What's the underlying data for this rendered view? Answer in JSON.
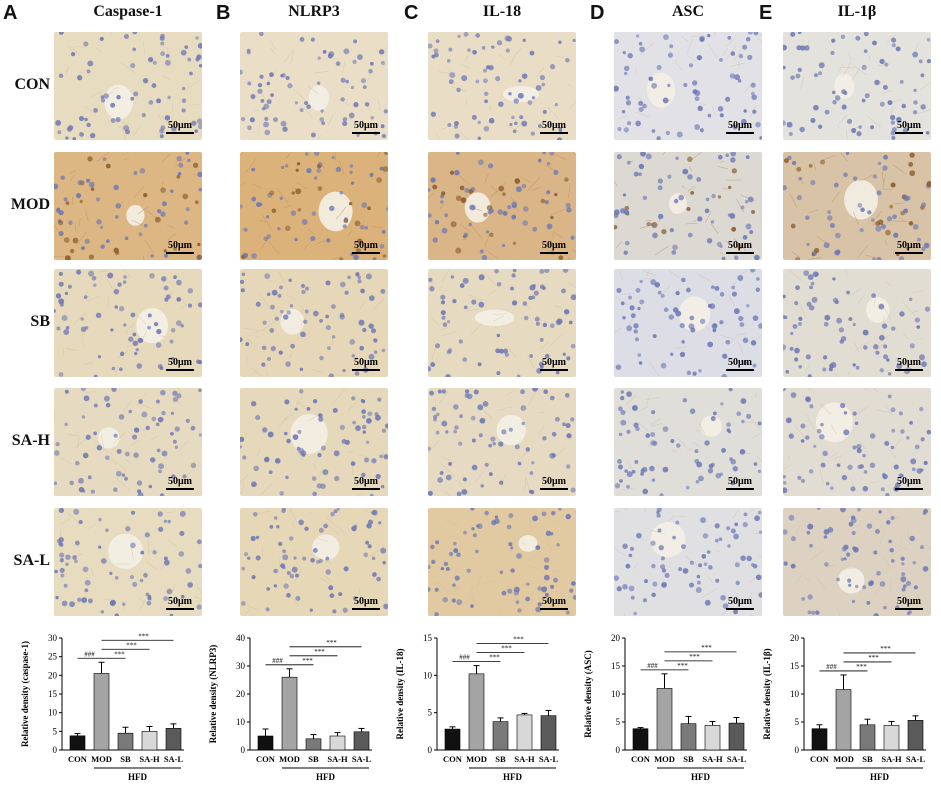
{
  "panels": [
    {
      "letter": "A",
      "title": "Caspase-1"
    },
    {
      "letter": "B",
      "title": "NLRP3"
    },
    {
      "letter": "C",
      "title": "IL-18"
    },
    {
      "letter": "D",
      "title": "ASC"
    },
    {
      "letter": "E",
      "title": "IL-1β"
    }
  ],
  "row_labels": [
    "CON",
    "MOD",
    "SB",
    "SA-H",
    "SA-L"
  ],
  "scale_bar_label": "50μm",
  "colors": {
    "tissue_pale": "#e9dcc1",
    "tissue_brown": "#d9b98a",
    "tissue_blue_pale": "#dfe0e6",
    "nucleus": "#6b76b4",
    "bar_CON": "#111111",
    "bar_MOD": "#a4a4a4",
    "bar_SB": "#7a7a7a",
    "bar_SA_H": "#d8d8d8",
    "bar_SA_L": "#5a5a5a"
  },
  "chart_data": [
    {
      "type": "bar",
      "ylabel": "Relative density (caspase-1)",
      "categories": [
        "CON",
        "MOD",
        "SB",
        "SA-H",
        "SA-L"
      ],
      "values": [
        3.8,
        20.5,
        4.5,
        5.0,
        5.8
      ],
      "errors": [
        0.6,
        3.0,
        1.6,
        1.3,
        1.2
      ],
      "ylim": [
        0,
        30
      ],
      "yticks": [
        0,
        5,
        10,
        15,
        20,
        25,
        30
      ],
      "group_label": "HFD",
      "sig_hash": "###",
      "sig_star": "***"
    },
    {
      "type": "bar",
      "ylabel": "Relative density (NLRP3)",
      "categories": [
        "CON",
        "MOD",
        "SB",
        "SA-H",
        "SA-L"
      ],
      "values": [
        5.0,
        26.0,
        4.0,
        5.0,
        6.5
      ],
      "errors": [
        2.5,
        3.0,
        1.5,
        1.2,
        1.2
      ],
      "ylim": [
        0,
        40
      ],
      "yticks": [
        0,
        10,
        20,
        30,
        40
      ],
      "group_label": "HFD",
      "sig_hash": "###",
      "sig_star": "***"
    },
    {
      "type": "bar",
      "ylabel": "Relative density (IL-18)",
      "categories": [
        "CON",
        "MOD",
        "SB",
        "SA-H",
        "SA-L"
      ],
      "values": [
        2.8,
        10.2,
        3.8,
        4.7,
        4.6
      ],
      "errors": [
        0.3,
        1.1,
        0.5,
        0.2,
        0.7
      ],
      "ylim": [
        0,
        15
      ],
      "yticks": [
        0,
        5,
        10,
        15
      ],
      "group_label": "HFD",
      "sig_hash": "###",
      "sig_star": "***"
    },
    {
      "type": "bar",
      "ylabel": "Relative density (ASC)",
      "categories": [
        "CON",
        "MOD",
        "SB",
        "SA-H",
        "SA-L"
      ],
      "values": [
        3.8,
        11.0,
        4.7,
        4.4,
        4.8
      ],
      "errors": [
        0.2,
        2.6,
        1.3,
        0.7,
        1.0
      ],
      "ylim": [
        0,
        20
      ],
      "yticks": [
        0,
        5,
        10,
        15,
        20
      ],
      "group_label": "HFD",
      "sig_hash": "###",
      "sig_star": "***"
    },
    {
      "type": "bar",
      "ylabel": "Relative density (IL-1β)",
      "categories": [
        "CON",
        "MOD",
        "SB",
        "SA-H",
        "SA-L"
      ],
      "values": [
        3.8,
        10.8,
        4.5,
        4.4,
        5.3
      ],
      "errors": [
        0.7,
        2.6,
        1.0,
        0.7,
        0.8
      ],
      "ylim": [
        0,
        20
      ],
      "yticks": [
        0,
        5,
        10,
        15,
        20
      ],
      "group_label": "HFD",
      "sig_hash": "###",
      "sig_star": "***"
    }
  ]
}
